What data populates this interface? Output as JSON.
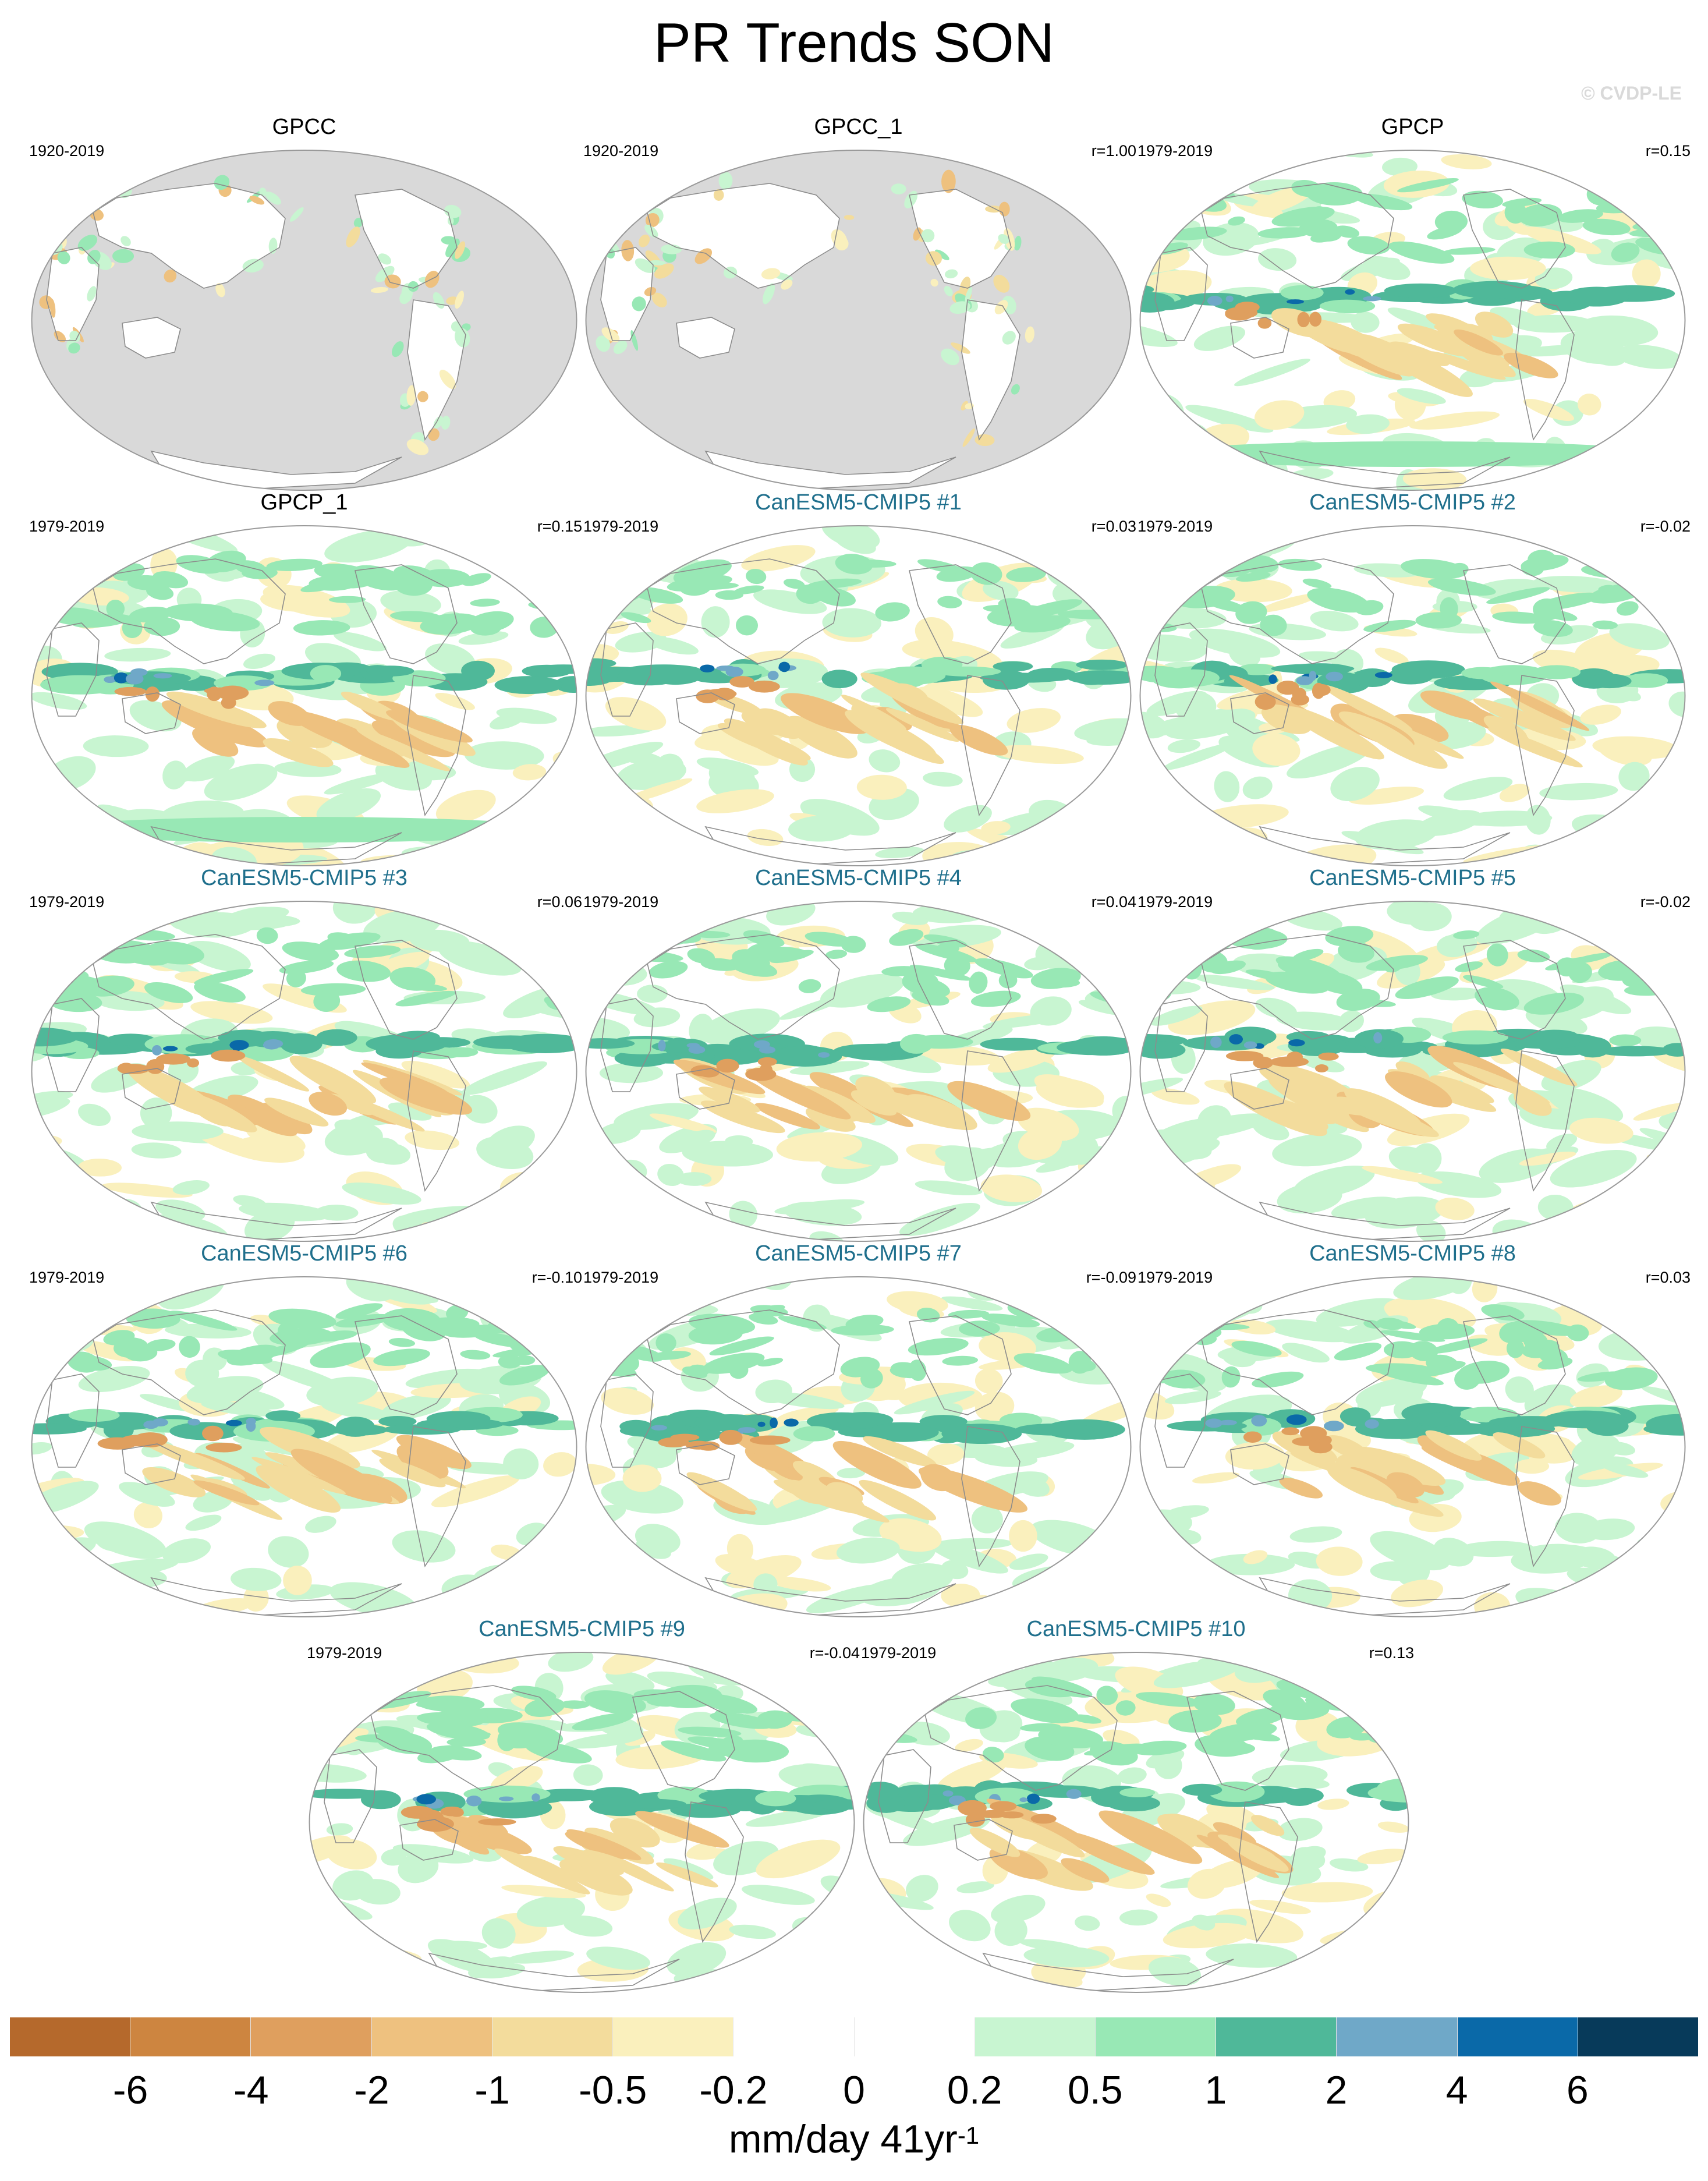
{
  "page": {
    "title": "PR Trends SON",
    "credit": "© CVDP-LE"
  },
  "panels": [
    {
      "name": "GPCC",
      "period": "1920-2019",
      "r": "",
      "kind": "obs",
      "land_only": true
    },
    {
      "name": "GPCC_1",
      "period": "1920-2019",
      "r": "r=1.00",
      "kind": "obs",
      "land_only": true
    },
    {
      "name": "GPCP",
      "period": "1979-2019",
      "r": "r=0.15",
      "kind": "obs",
      "land_only": false
    },
    {
      "name": "GPCP_1",
      "period": "1979-2019",
      "r": "r=0.15",
      "kind": "obs",
      "land_only": false
    },
    {
      "name": "CanESM5-CMIP5 #1",
      "period": "1979-2019",
      "r": "r=0.03",
      "kind": "model",
      "land_only": false
    },
    {
      "name": "CanESM5-CMIP5 #2",
      "period": "1979-2019",
      "r": "r=-0.02",
      "kind": "model",
      "land_only": false
    },
    {
      "name": "CanESM5-CMIP5 #3",
      "period": "1979-2019",
      "r": "r=0.06",
      "kind": "model",
      "land_only": false
    },
    {
      "name": "CanESM5-CMIP5 #4",
      "period": "1979-2019",
      "r": "r=0.04",
      "kind": "model",
      "land_only": false
    },
    {
      "name": "CanESM5-CMIP5 #5",
      "period": "1979-2019",
      "r": "r=-0.02",
      "kind": "model",
      "land_only": false
    },
    {
      "name": "CanESM5-CMIP5 #6",
      "period": "1979-2019",
      "r": "r=-0.10",
      "kind": "model",
      "land_only": false
    },
    {
      "name": "CanESM5-CMIP5 #7",
      "period": "1979-2019",
      "r": "r=-0.09",
      "kind": "model",
      "land_only": false
    },
    {
      "name": "CanESM5-CMIP5 #8",
      "period": "1979-2019",
      "r": "r=0.03",
      "kind": "model",
      "land_only": false
    },
    {
      "name": "CanESM5-CMIP5 #9",
      "period": "1979-2019",
      "r": "r=-0.04",
      "kind": "model",
      "land_only": false
    },
    {
      "name": "CanESM5-CMIP5 #10",
      "period": "1979-2019",
      "r": "r=0.13",
      "kind": "model",
      "land_only": false
    }
  ],
  "colorbar": {
    "units": "mm/day 41yr",
    "units_exponent": "-1",
    "ticks": [
      "-6",
      "-4",
      "-2",
      "-1",
      "-0.5",
      "-0.2",
      "0",
      "0.2",
      "0.5",
      "1",
      "2",
      "4",
      "6"
    ],
    "colors": [
      "#b5692c",
      "#cd8540",
      "#df9f5e",
      "#eec17f",
      "#f3dc9c",
      "#faf0bd",
      "#ffffff",
      "#ffffff",
      "#c8f5d1",
      "#98e8b5",
      "#4fb899",
      "#6fa8c8",
      "#0a69a8",
      "#073a5a"
    ]
  },
  "map_colors": {
    "ocean_masked": "#d9d9d9",
    "coast": "#8c8c8c",
    "frame": "#9a9a9a"
  }
}
